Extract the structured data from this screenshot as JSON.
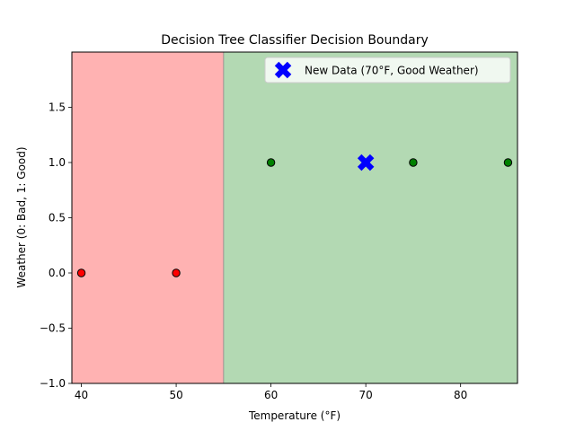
{
  "chart_data": {
    "type": "scatter",
    "title": "Decision Tree Classifier Decision Boundary",
    "xlabel": "Temperature (°F)",
    "ylabel": "Weather (0: Bad, 1: Good)",
    "xlim": [
      39,
      86
    ],
    "ylim": [
      -1.0,
      2.0
    ],
    "x_ticks": [
      40,
      50,
      60,
      70,
      80
    ],
    "y_ticks": [
      -1.0,
      -0.5,
      0.0,
      0.5,
      1.0,
      1.5
    ],
    "x_tick_labels": [
      "40",
      "50",
      "60",
      "70",
      "80"
    ],
    "y_tick_labels": [
      "−1.0",
      "−0.5",
      "0.0",
      "0.5",
      "1.0",
      "1.5"
    ],
    "decision_threshold": 55,
    "regions": [
      {
        "x_from": 39,
        "x_to": 55,
        "color": "#ffb2b2"
      },
      {
        "x_from": 55,
        "x_to": 86,
        "color": "#b3d9b3"
      }
    ],
    "training_points": [
      {
        "x": 40,
        "y": 0,
        "color": "#ff0000"
      },
      {
        "x": 50,
        "y": 0,
        "color": "#ff0000"
      },
      {
        "x": 60,
        "y": 1,
        "color": "#008000"
      },
      {
        "x": 75,
        "y": 1,
        "color": "#008000"
      },
      {
        "x": 85,
        "y": 1,
        "color": "#008000"
      }
    ],
    "new_point": {
      "x": 70,
      "y": 1,
      "color": "#0000ff",
      "label": "New Data (70°F, Good Weather)"
    },
    "legend": {
      "position": "top-right",
      "entries": [
        "New Data (70°F, Good Weather)"
      ]
    },
    "grid": false
  }
}
